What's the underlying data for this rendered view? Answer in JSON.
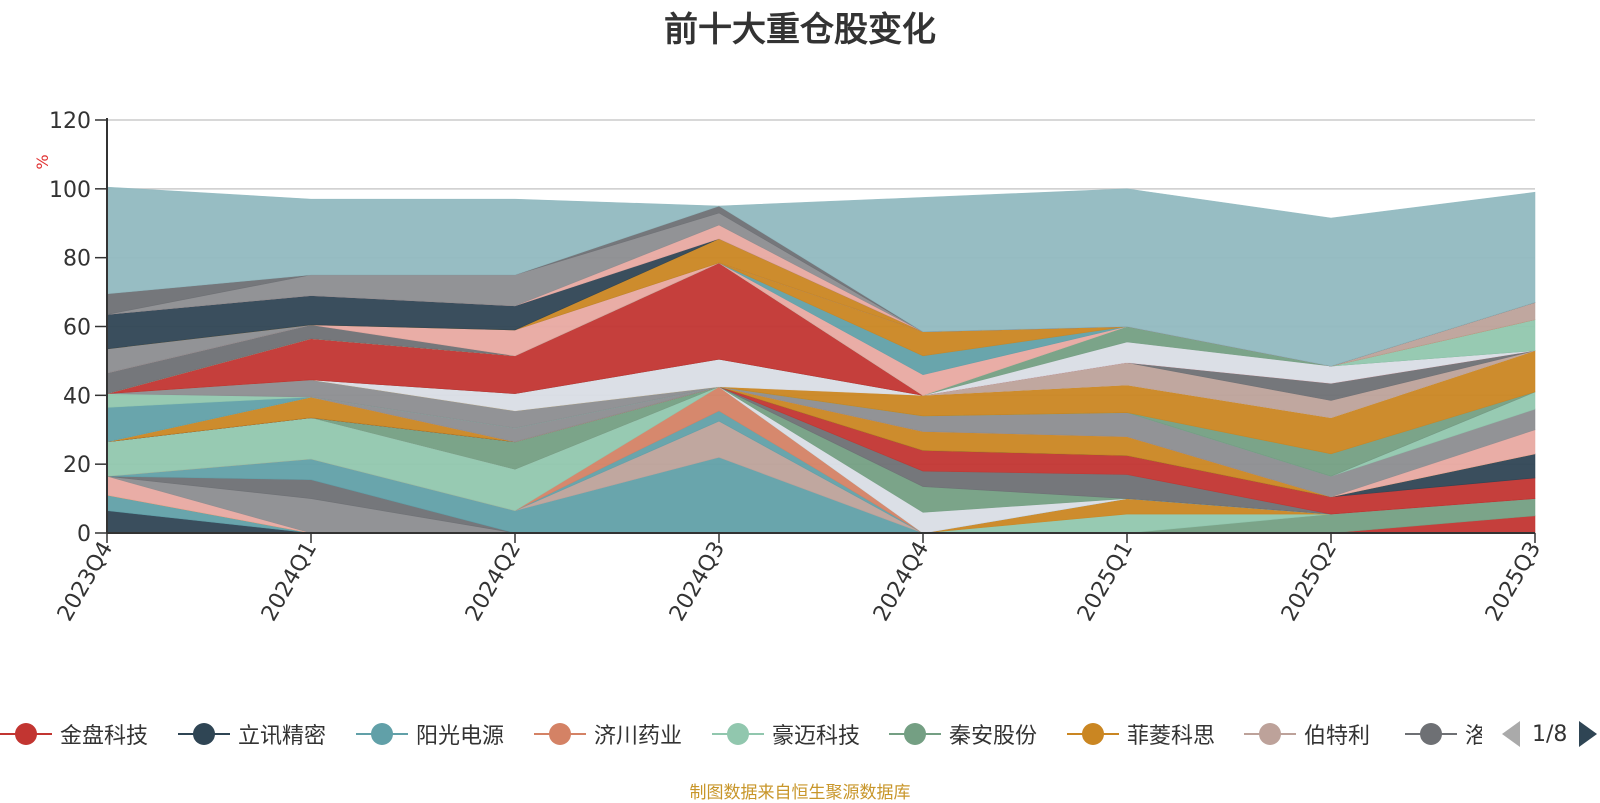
{
  "title": "前十大重仓股变化",
  "source_note": "制图数据来自恒生聚源数据库",
  "legend": {
    "items": [
      {
        "name": "金盘科技",
        "color": "#c23531"
      },
      {
        "name": "立讯精密",
        "color": "#2f4554"
      },
      {
        "name": "阳光电源",
        "color": "#61a0a8"
      },
      {
        "name": "济川药业",
        "color": "#d48265"
      },
      {
        "name": "豪迈科技",
        "color": "#91c7ae"
      },
      {
        "name": "秦安股份",
        "color": "#749f83"
      },
      {
        "name": "菲菱科思",
        "color": "#ca8622"
      },
      {
        "name": "伯特利",
        "color": "#bda29a"
      },
      {
        "name": "洛|",
        "color": "#6e7074"
      }
    ],
    "page": "1/8"
  },
  "chart_data": {
    "type": "area",
    "stacked": true,
    "categories": [
      "2023Q4",
      "2024Q1",
      "2024Q2",
      "2024Q3",
      "2024Q4",
      "2025Q1",
      "2025Q2",
      "2025Q3"
    ],
    "ylim": [
      0,
      120
    ],
    "yticks": [
      0,
      20,
      40,
      60,
      80,
      100,
      120
    ],
    "ylabel": "%",
    "grid": true,
    "legend_position": "bottom",
    "layers": [
      {
        "color": "#2f4554",
        "values": [
          6.5,
          0,
          0,
          0,
          0,
          0,
          0,
          0
        ]
      },
      {
        "color": "#61a0a8",
        "values": [
          4.5,
          0,
          0,
          0,
          0,
          0,
          0,
          0
        ]
      },
      {
        "color": "#c23531",
        "values": [
          0,
          0,
          0,
          0,
          0,
          0,
          0,
          5
        ]
      },
      {
        "color": "#749f83",
        "values": [
          0,
          0,
          0,
          0,
          0,
          0,
          5.5,
          5
        ]
      },
      {
        "color": "#91c7ae",
        "values": [
          0,
          0,
          0,
          0,
          0,
          5.5,
          0,
          0
        ]
      },
      {
        "color": "#ca8622",
        "values": [
          0,
          0,
          0,
          0,
          0,
          4.5,
          0,
          0
        ]
      },
      {
        "color": "#e8a9a1",
        "values": [
          5.5,
          0,
          0,
          0,
          0,
          0,
          0,
          0
        ]
      },
      {
        "color": "#8c8d90",
        "values": [
          0,
          10,
          0,
          0,
          0,
          0,
          0,
          0
        ]
      },
      {
        "color": "#6e7074",
        "values": [
          0,
          5.5,
          0,
          0,
          0,
          0,
          0,
          0
        ]
      },
      {
        "color": "#61a0a8",
        "values": [
          0,
          6,
          6.5,
          22,
          0,
          0,
          0,
          0
        ]
      },
      {
        "color": "#bda29a",
        "values": [
          0,
          0,
          0,
          10.5,
          0,
          0,
          0,
          0
        ]
      },
      {
        "color": "#61a0a8",
        "values": [
          0,
          0,
          0,
          3,
          0,
          0,
          0,
          0
        ]
      },
      {
        "color": "#d48265",
        "values": [
          0,
          0,
          0,
          7,
          0,
          0,
          0,
          0
        ]
      },
      {
        "color": "#91c7ae",
        "values": [
          10,
          12,
          12,
          0,
          0,
          0,
          0,
          0
        ]
      },
      {
        "color": "#d9dde5",
        "values": [
          0,
          0,
          0,
          0,
          6,
          0,
          0,
          0
        ]
      },
      {
        "color": "#749f83",
        "values": [
          0,
          0,
          8,
          0,
          7.5,
          0,
          0,
          0
        ]
      },
      {
        "color": "#6e7074",
        "values": [
          0,
          0,
          0,
          0,
          4.5,
          7,
          0,
          0
        ]
      },
      {
        "color": "#c23531",
        "values": [
          0,
          0,
          0,
          0,
          6,
          5.5,
          5,
          6
        ]
      },
      {
        "color": "#2f4554",
        "values": [
          0,
          0,
          0,
          0,
          0,
          0,
          0,
          7
        ]
      },
      {
        "color": "#ca8622",
        "values": [
          0,
          6,
          0,
          0,
          5.5,
          5.5,
          0,
          0
        ]
      },
      {
        "color": "#e8a9a1",
        "values": [
          0,
          0,
          0,
          0,
          0,
          0,
          0,
          7
        ]
      },
      {
        "color": "#8c8d90",
        "values": [
          0,
          0,
          4,
          0,
          4.5,
          7,
          6,
          6
        ]
      },
      {
        "color": "#91c7ae",
        "values": [
          0,
          0,
          0,
          0,
          0,
          0,
          0,
          5
        ]
      },
      {
        "color": "#61a0a8",
        "values": [
          10,
          0,
          0,
          0,
          0,
          0,
          0,
          0
        ]
      },
      {
        "color": "#91c7ae",
        "values": [
          4,
          0,
          0,
          0,
          0,
          0,
          0,
          0
        ]
      },
      {
        "color": "#8c8d90",
        "values": [
          0,
          5,
          5,
          0,
          0,
          0,
          0,
          0
        ]
      },
      {
        "color": "#749f83",
        "values": [
          0,
          0,
          0,
          0,
          0,
          0,
          6.5,
          0
        ]
      },
      {
        "color": "#ca8622",
        "values": [
          0,
          0,
          0,
          0,
          6,
          8,
          10.5,
          12
        ]
      },
      {
        "color": "#d9dde5",
        "values": [
          0,
          0,
          5,
          8,
          0,
          0,
          0,
          0
        ]
      },
      {
        "color": "#bda29a",
        "values": [
          0,
          0,
          0,
          0,
          0,
          6.5,
          5,
          0
        ]
      },
      {
        "color": "#6e7074",
        "values": [
          0,
          0,
          0,
          0,
          0,
          0,
          5,
          0
        ]
      },
      {
        "color": "#c23531",
        "values": [
          0,
          12,
          11,
          28,
          0,
          0,
          0,
          0
        ]
      },
      {
        "color": "#d9dde5",
        "values": [
          0,
          0,
          0,
          0,
          0,
          6,
          5,
          0
        ]
      },
      {
        "color": "#749f83",
        "values": [
          0,
          0,
          0,
          0,
          0,
          4.5,
          0,
          0
        ]
      },
      {
        "color": "#91c7ae",
        "values": [
          0,
          0,
          0,
          0,
          0,
          0,
          0,
          9
        ]
      },
      {
        "color": "#e8a9a1",
        "values": [
          0,
          0,
          0,
          0,
          6,
          0,
          0,
          0
        ]
      },
      {
        "color": "#61a0a8",
        "values": [
          0,
          0,
          0,
          0,
          5.5,
          0,
          0,
          0
        ]
      },
      {
        "color": "#ca8622",
        "values": [
          0,
          0,
          0,
          0,
          7,
          0,
          0,
          0
        ]
      },
      {
        "color": "#bda29a",
        "values": [
          0,
          0,
          0,
          0,
          0,
          0,
          0,
          5
        ]
      },
      {
        "color": "#6e7074",
        "values": [
          6,
          4,
          0,
          0,
          0,
          0,
          0,
          0
        ]
      },
      {
        "color": "#e8a9a1",
        "values": [
          0,
          0,
          7.5,
          0,
          0,
          0,
          0,
          0
        ]
      },
      {
        "color": "#8c8d90",
        "values": [
          7,
          0,
          0,
          0,
          0,
          0,
          0,
          0
        ]
      },
      {
        "color": "#ca8622",
        "values": [
          0,
          0,
          0,
          7,
          0,
          0,
          0,
          0
        ]
      },
      {
        "color": "#2f4554",
        "values": [
          10,
          8.5,
          7,
          0,
          0,
          0,
          0,
          0
        ]
      },
      {
        "color": "#e8a9a1",
        "values": [
          0,
          0,
          0,
          4,
          0,
          0,
          0,
          0
        ]
      },
      {
        "color": "#8c8d90",
        "values": [
          0,
          6,
          9,
          3.5,
          0,
          0,
          0,
          0
        ]
      },
      {
        "color": "#6e7074",
        "values": [
          6,
          0,
          0,
          2,
          0,
          0,
          0,
          0
        ]
      },
      {
        "color": "#91b9c0",
        "values": [
          31,
          22,
          22,
          0,
          39,
          40,
          43,
          32
        ]
      }
    ]
  }
}
